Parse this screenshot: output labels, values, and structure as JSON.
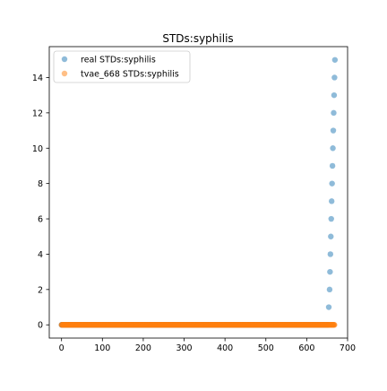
{
  "chart_data": {
    "type": "scatter",
    "title": "STDs:syphilis",
    "xlabel": "",
    "ylabel": "",
    "xlim": [
      -30,
      700
    ],
    "ylim": [
      -0.75,
      15.75
    ],
    "xticks": [
      0,
      100,
      200,
      300,
      400,
      500,
      600,
      700
    ],
    "yticks": [
      0,
      2,
      4,
      6,
      8,
      10,
      12,
      14
    ],
    "grid": false,
    "legend_position": "top-left",
    "series": [
      {
        "name": "real STDs:syphilis",
        "color": "#1f77b4",
        "alpha": 0.5,
        "x_range": [
          0,
          653
        ],
        "y_constant": 0,
        "tail_points": [
          {
            "x": 654,
            "y": 1
          },
          {
            "x": 656,
            "y": 2
          },
          {
            "x": 657,
            "y": 3
          },
          {
            "x": 658,
            "y": 4
          },
          {
            "x": 659,
            "y": 5
          },
          {
            "x": 660,
            "y": 6
          },
          {
            "x": 661,
            "y": 7
          },
          {
            "x": 662,
            "y": 8
          },
          {
            "x": 663,
            "y": 9
          },
          {
            "x": 664,
            "y": 10
          },
          {
            "x": 665,
            "y": 11
          },
          {
            "x": 666,
            "y": 12
          },
          {
            "x": 667,
            "y": 13
          },
          {
            "x": 668,
            "y": 14
          },
          {
            "x": 669,
            "y": 15
          }
        ]
      },
      {
        "name": "tvae_668 STDs:syphilis",
        "color": "#ff7f0e",
        "alpha": 0.5,
        "x_range": [
          0,
          668
        ],
        "y_constant": 0
      }
    ]
  }
}
